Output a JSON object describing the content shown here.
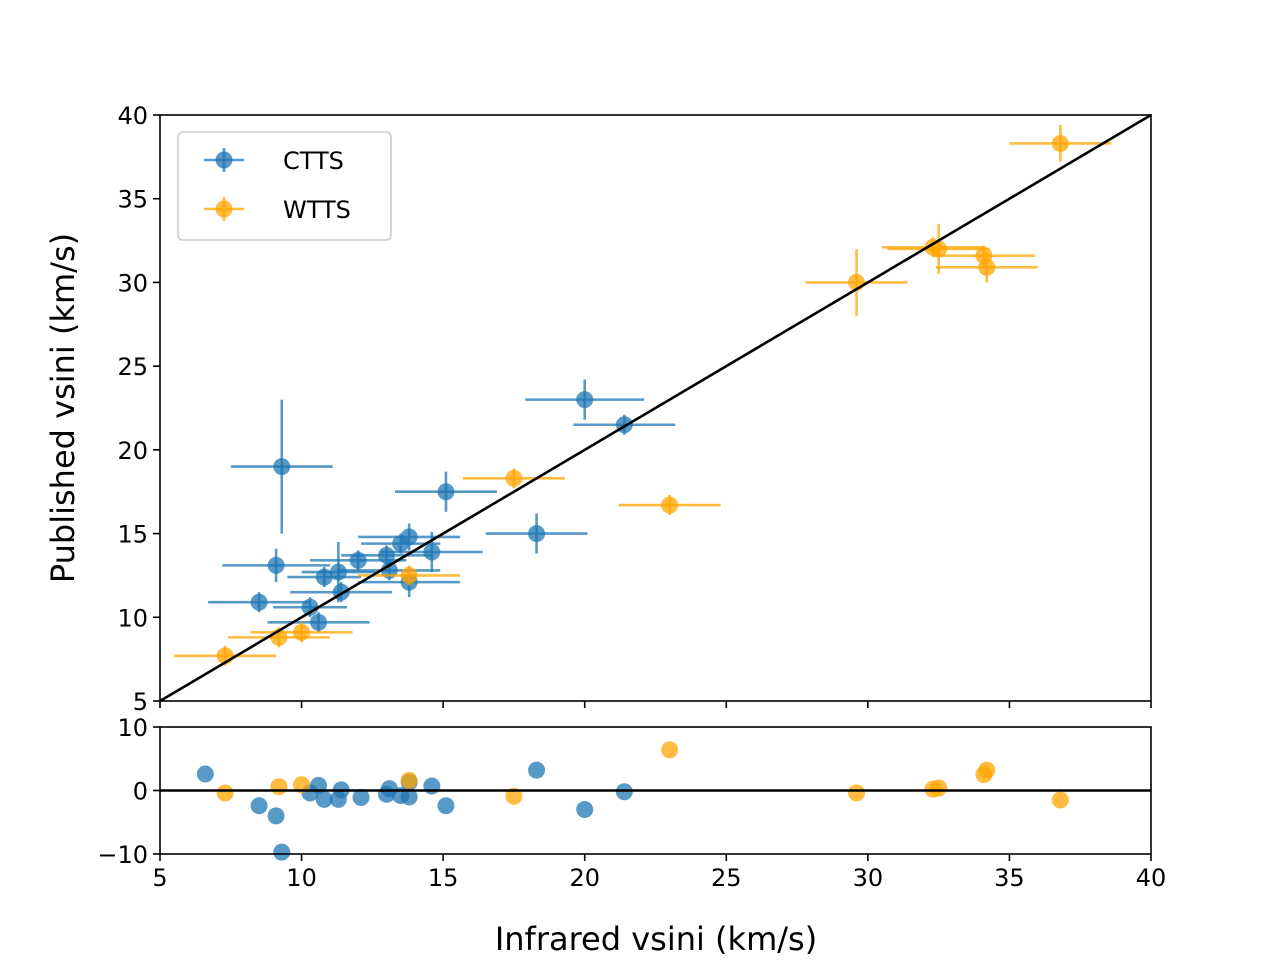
{
  "chart_data": {
    "type": "scatter",
    "colors": {
      "ctts": "#1f77b4",
      "wtts": "#ffa500",
      "line": "#000000"
    },
    "main": {
      "xlabel": "Infrared vsini (km/s)",
      "ylabel": "Published vsini (km/s)",
      "xlim": [
        5,
        40
      ],
      "ylim": [
        5,
        40
      ],
      "xticks": [
        "5",
        "10",
        "15",
        "20",
        "25",
        "30",
        "35",
        "40"
      ],
      "yticks": [
        "5",
        "10",
        "15",
        "20",
        "25",
        "30",
        "35",
        "40"
      ],
      "reference_line": "y = x",
      "legend_position": "upper-left",
      "series": [
        {
          "name": "CTTS",
          "key": "ctts",
          "points": [
            {
              "x": 9.3,
              "y": 19.0,
              "xerr": 1.8,
              "yerr": 4.0
            },
            {
              "x": 9.1,
              "y": 13.1,
              "xerr": 1.9,
              "yerr": 1.0
            },
            {
              "x": 8.5,
              "y": 10.9,
              "xerr": 1.8,
              "yerr": 0.6
            },
            {
              "x": 10.3,
              "y": 10.6,
              "xerr": 1.3,
              "yerr": 0.6
            },
            {
              "x": 10.6,
              "y": 9.7,
              "xerr": 1.8,
              "yerr": 0.6
            },
            {
              "x": 10.8,
              "y": 12.4,
              "xerr": 1.3,
              "yerr": 0.6
            },
            {
              "x": 11.3,
              "y": 12.7,
              "xerr": 1.3,
              "yerr": 1.8
            },
            {
              "x": 11.4,
              "y": 11.5,
              "xerr": 1.8,
              "yerr": 0.6
            },
            {
              "x": 12.0,
              "y": 13.4,
              "xerr": 1.7,
              "yerr": 0.6
            },
            {
              "x": 13.0,
              "y": 13.7,
              "xerr": 1.6,
              "yerr": 0.6
            },
            {
              "x": 13.1,
              "y": 12.8,
              "xerr": 1.8,
              "yerr": 0.6
            },
            {
              "x": 13.5,
              "y": 14.4,
              "xerr": 1.4,
              "yerr": 0.6
            },
            {
              "x": 13.8,
              "y": 14.8,
              "xerr": 1.8,
              "yerr": 0.8
            },
            {
              "x": 13.8,
              "y": 12.1,
              "xerr": 1.8,
              "yerr": 0.9
            },
            {
              "x": 14.6,
              "y": 13.9,
              "xerr": 1.8,
              "yerr": 1.2
            },
            {
              "x": 15.1,
              "y": 17.5,
              "xerr": 1.8,
              "yerr": 1.2
            },
            {
              "x": 18.3,
              "y": 15.0,
              "xerr": 1.8,
              "yerr": 1.2
            },
            {
              "x": 20.0,
              "y": 23.0,
              "xerr": 2.1,
              "yerr": 1.2
            },
            {
              "x": 21.4,
              "y": 21.5,
              "xerr": 1.8,
              "yerr": 0.6
            }
          ]
        },
        {
          "name": "WTTS",
          "key": "wtts",
          "points": [
            {
              "x": 7.3,
              "y": 7.7,
              "xerr": 1.8,
              "yerr": 0.6
            },
            {
              "x": 9.2,
              "y": 8.8,
              "xerr": 1.8,
              "yerr": 0.6
            },
            {
              "x": 10.0,
              "y": 9.1,
              "xerr": 1.8,
              "yerr": 0.6
            },
            {
              "x": 13.8,
              "y": 12.5,
              "xerr": 1.8,
              "yerr": 0.6
            },
            {
              "x": 17.5,
              "y": 18.3,
              "xerr": 1.8,
              "yerr": 0.6
            },
            {
              "x": 23.0,
              "y": 16.7,
              "xerr": 1.8,
              "yerr": 0.6
            },
            {
              "x": 29.6,
              "y": 30.0,
              "xerr": 1.8,
              "yerr": 2.0
            },
            {
              "x": 32.3,
              "y": 32.1,
              "xerr": 1.8,
              "yerr": 0.6
            },
            {
              "x": 32.5,
              "y": 32.0,
              "xerr": 1.8,
              "yerr": 1.5
            },
            {
              "x": 34.1,
              "y": 31.6,
              "xerr": 1.8,
              "yerr": 0.6
            },
            {
              "x": 34.2,
              "y": 30.9,
              "xerr": 1.8,
              "yerr": 0.9
            },
            {
              "x": 36.8,
              "y": 38.3,
              "xerr": 1.8,
              "yerr": 1.1
            }
          ]
        }
      ]
    },
    "residual": {
      "ylim": [
        -10,
        10
      ],
      "yticks": [
        "10",
        "0",
        "−10"
      ],
      "zero_line": true,
      "series": [
        {
          "key": "ctts",
          "points": [
            {
              "x": 6.6,
              "y": 2.6
            },
            {
              "x": 8.5,
              "y": -2.4
            },
            {
              "x": 9.1,
              "y": -4.0
            },
            {
              "x": 9.3,
              "y": -9.7
            },
            {
              "x": 10.3,
              "y": -0.4
            },
            {
              "x": 10.6,
              "y": 0.8
            },
            {
              "x": 10.8,
              "y": -1.4
            },
            {
              "x": 11.3,
              "y": -1.4
            },
            {
              "x": 11.4,
              "y": 0.1
            },
            {
              "x": 12.1,
              "y": -1.1
            },
            {
              "x": 13.0,
              "y": -0.6
            },
            {
              "x": 13.1,
              "y": 0.3
            },
            {
              "x": 13.5,
              "y": -0.8
            },
            {
              "x": 13.8,
              "y": 1.3
            },
            {
              "x": 13.8,
              "y": -1.0
            },
            {
              "x": 14.6,
              "y": 0.7
            },
            {
              "x": 15.1,
              "y": -2.4
            },
            {
              "x": 18.3,
              "y": 3.2
            },
            {
              "x": 20.0,
              "y": -3.0
            },
            {
              "x": 21.4,
              "y": -0.2
            }
          ]
        },
        {
          "key": "wtts",
          "points": [
            {
              "x": 7.3,
              "y": -0.4
            },
            {
              "x": 9.2,
              "y": 0.6
            },
            {
              "x": 10.0,
              "y": 0.9
            },
            {
              "x": 13.8,
              "y": 1.6
            },
            {
              "x": 17.5,
              "y": -0.9
            },
            {
              "x": 23.0,
              "y": 6.4
            },
            {
              "x": 29.6,
              "y": -0.4
            },
            {
              "x": 32.3,
              "y": 0.2
            },
            {
              "x": 32.5,
              "y": 0.4
            },
            {
              "x": 34.1,
              "y": 2.5
            },
            {
              "x": 34.2,
              "y": 3.2
            },
            {
              "x": 36.8,
              "y": -1.5
            }
          ]
        }
      ]
    }
  }
}
